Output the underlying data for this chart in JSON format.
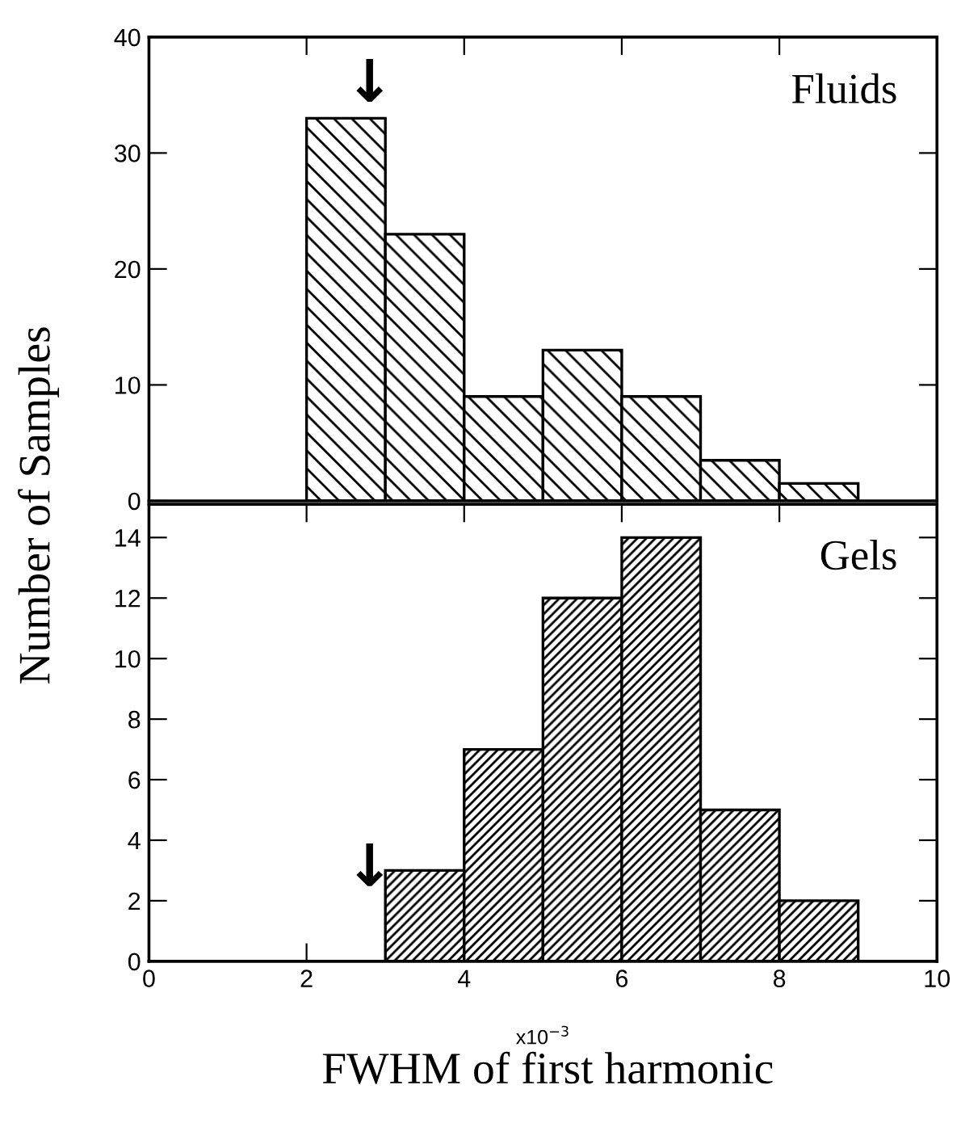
{
  "chart_data": [
    {
      "type": "histogram",
      "bins": [
        2,
        3,
        4,
        5,
        6,
        7,
        8,
        9
      ],
      "values": [
        33,
        23,
        9,
        13,
        9,
        3.5,
        1.5
      ],
      "color": "#000000",
      "xlim": [
        0,
        10
      ],
      "xticks": [
        {
          "value": 0,
          "label": null
        },
        {
          "value": 2,
          "label": null
        },
        {
          "value": 4,
          "label": null
        },
        {
          "value": 6,
          "label": null
        },
        {
          "value": 8,
          "label": null
        },
        {
          "value": 10,
          "label": null
        }
      ],
      "ylim": [
        0,
        40
      ],
      "yticks": [
        0,
        10,
        20,
        30,
        40
      ],
      "tick_labels": "y",
      "ylabel": "Number of Samples",
      "annotations": [
        "Fluids",
        {
          "text": "↓",
          "x": 2.8,
          "y": 33
        }
      ]
    },
    {
      "type": "histogram",
      "bins": [
        3,
        4,
        5,
        6,
        7,
        8,
        9
      ],
      "values": [
        3,
        7,
        12,
        14,
        5,
        2
      ],
      "color": "#000000",
      "xlim": [
        0,
        10
      ],
      "xticks": [
        0,
        2,
        4,
        6,
        8,
        10
      ],
      "ylim": [
        0,
        15.1
      ],
      "yticks": [
        0,
        2,
        4,
        6,
        8,
        10,
        12,
        14
      ],
      "xlabel": "FWHM of first harmonic",
      "annotations": [
        "Gels",
        "↓",
        "x10$^{−3}$"
      ]
    }
  ]
}
